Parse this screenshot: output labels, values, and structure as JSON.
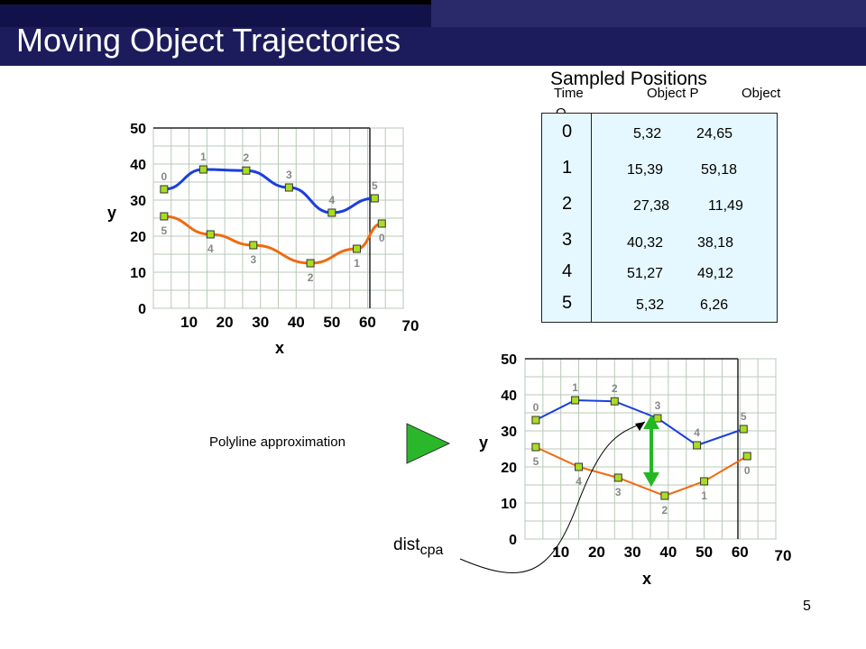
{
  "title": "Moving Object Trajectories",
  "page_number": "5",
  "colors": {
    "header": "#1c1c5c",
    "series_p": "#1a3ee0",
    "series_q": "#f06a10",
    "marker": "#aadd22",
    "table_bg": "#e6f8ff",
    "arrow_green": "#22b822"
  },
  "sampled_positions": {
    "title": "Sampled Positions",
    "col_time": "Time",
    "col_p": "Object P",
    "col_q_a": "Object",
    "col_q_b": "Q",
    "rows": [
      {
        "time": "0",
        "p": "5,32",
        "q": "24,65"
      },
      {
        "time": "1",
        "p": "15,39",
        "q": "59,18"
      },
      {
        "time": "2",
        "p": "27,38",
        "q": "11,49"
      },
      {
        "time": "3",
        "p": "40,32",
        "q": "38,18"
      },
      {
        "time": "4",
        "p": "51,27",
        "q": "49,12"
      },
      {
        "time": "5",
        "p": "5,32",
        "q": "6,26"
      }
    ]
  },
  "polyline_label": "Polyline approximation",
  "dist_label": "dist",
  "dist_subscript": "cpa",
  "chart_data": [
    {
      "type": "line",
      "xlabel": "x",
      "ylabel": "y",
      "xlim": [
        0,
        70
      ],
      "ylim": [
        0,
        50
      ],
      "x_ticks": [
        "10",
        "20",
        "30",
        "40",
        "50",
        "60",
        "70"
      ],
      "y_ticks": [
        "0",
        "10",
        "20",
        "30",
        "40",
        "50"
      ],
      "grid": true,
      "series": [
        {
          "points": [
            [
              3,
              33
            ],
            [
              14,
              38.5
            ],
            [
              26,
              38.2
            ],
            [
              38,
              33.5
            ],
            [
              50,
              26.5
            ],
            [
              62,
              30.5
            ]
          ],
          "labels": [
            "0",
            "1",
            "2",
            "3",
            "4",
            "5"
          ]
        },
        {
          "points": [
            [
              3,
              25.5
            ],
            [
              16,
              20.5
            ],
            [
              28,
              17.5
            ],
            [
              44,
              12.5
            ],
            [
              57,
              16.5
            ],
            [
              64,
              23.5
            ]
          ],
          "labels": [
            "5",
            "4",
            "3",
            "2",
            "1",
            "0"
          ]
        }
      ]
    },
    {
      "type": "line",
      "xlabel": "x",
      "ylabel": "y",
      "xlim": [
        0,
        70
      ],
      "ylim": [
        0,
        50
      ],
      "x_ticks": [
        "10",
        "20",
        "30",
        "40",
        "50",
        "60",
        "70"
      ],
      "y_ticks": [
        "0",
        "10",
        "20",
        "30",
        "40",
        "50"
      ],
      "grid": true,
      "series": [
        {
          "points": [
            [
              3,
              33
            ],
            [
              14,
              38.5
            ],
            [
              25,
              38.2
            ],
            [
              37,
              33.5
            ],
            [
              48,
              26
            ],
            [
              61,
              30.5
            ]
          ],
          "labels": [
            "0",
            "1",
            "2",
            "3",
            "4",
            "5"
          ]
        },
        {
          "points": [
            [
              3,
              25.5
            ],
            [
              15,
              20
            ],
            [
              26,
              17
            ],
            [
              39,
              12
            ],
            [
              50,
              16
            ],
            [
              62,
              23
            ]
          ],
          "labels": [
            "5",
            "4",
            "3",
            "2",
            "1",
            "0"
          ]
        }
      ]
    }
  ]
}
